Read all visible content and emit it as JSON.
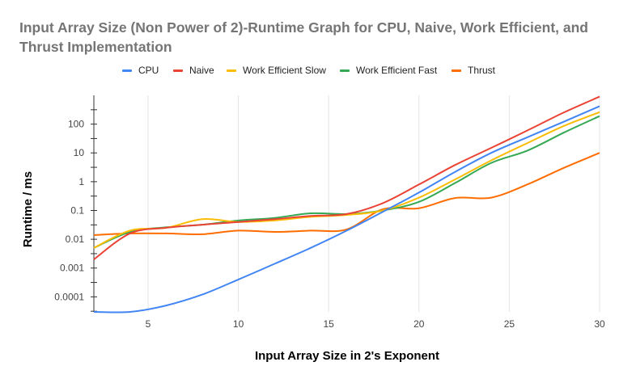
{
  "chart_data": {
    "type": "line",
    "title": "Input Array Size (Non Power of 2)-Runtime Graph for CPU, Naive, Work Efficient, and Thrust Implementation",
    "xlabel": "Input Array Size in 2's Exponent",
    "ylabel": "Runtime / ms",
    "x": [
      2,
      4,
      6,
      8,
      10,
      12,
      14,
      16,
      18,
      20,
      22,
      24,
      26,
      28,
      30
    ],
    "xlim": [
      2,
      30
    ],
    "x_ticks": [
      5,
      10,
      15,
      20,
      25,
      30
    ],
    "y_scale": "log",
    "ylim": [
      3e-05,
      1000
    ],
    "y_ticks": [
      0.0001,
      0.001,
      0.01,
      0.1,
      1,
      10,
      100
    ],
    "y_tick_labels": [
      "0.0001",
      "0.001",
      "0.01",
      "0.1",
      "1",
      "10",
      "100"
    ],
    "grid": "vertical",
    "legend_position": "top",
    "series": [
      {
        "name": "CPU",
        "color": "#4285F4",
        "values": [
          3e-05,
          3e-05,
          5e-05,
          0.00012,
          0.0004,
          0.0014,
          0.005,
          0.02,
          0.09,
          0.42,
          2.2,
          10,
          35,
          120,
          420
        ]
      },
      {
        "name": "Naive",
        "color": "#EA4335",
        "values": [
          0.002,
          0.016,
          0.025,
          0.032,
          0.04,
          0.05,
          0.065,
          0.075,
          0.18,
          0.8,
          3.8,
          15,
          60,
          250,
          900
        ]
      },
      {
        "name": "Work Efficient Slow",
        "color": "#FBBC04",
        "values": [
          0.005,
          0.02,
          0.025,
          0.05,
          0.04,
          0.045,
          0.06,
          0.07,
          0.1,
          0.28,
          1.2,
          5.5,
          22,
          85,
          260
        ]
      },
      {
        "name": "Work Efficient Fast",
        "color": "#34A853",
        "values": [
          0.005,
          0.018,
          0.026,
          0.032,
          0.045,
          0.055,
          0.08,
          0.075,
          0.1,
          0.2,
          0.9,
          4.5,
          12,
          50,
          190
        ]
      },
      {
        "name": "Thrust",
        "color": "#FF6D01",
        "values": [
          0.014,
          0.016,
          0.016,
          0.015,
          0.02,
          0.018,
          0.02,
          0.022,
          0.11,
          0.12,
          0.27,
          0.28,
          0.8,
          3,
          10
        ]
      }
    ]
  }
}
